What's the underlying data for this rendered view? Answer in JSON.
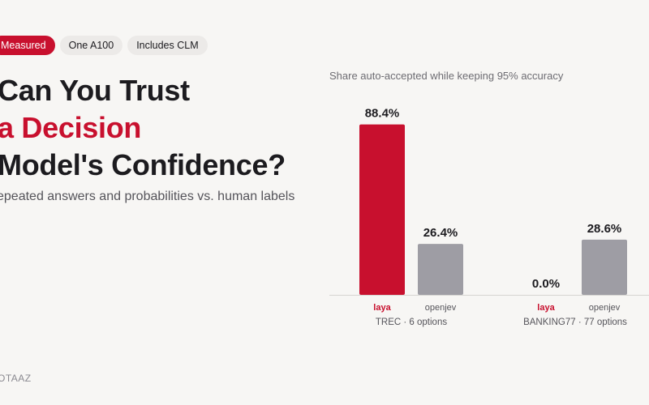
{
  "badges": [
    "Measured",
    "One A100",
    "Includes CLM"
  ],
  "headline": {
    "line1": "Can You Trust",
    "line2": "a Decision",
    "line3": "Model's Confidence?"
  },
  "subtitle": "epeated answers and probabilities vs. human labels",
  "brand": "OTAAZ",
  "colors": {
    "accent": "#c8102e",
    "neutral": "#9e9da4",
    "background": "#f7f6f4"
  },
  "chart_data": {
    "type": "bar",
    "title": "Share auto-accepted while keeping 95% accuracy",
    "ylim": [
      0,
      100
    ],
    "unit": "%",
    "groups": [
      {
        "label": "TREC · 6 options",
        "bars": [
          {
            "label": "laya",
            "value": 88.4,
            "value_label": "88.4%",
            "highlight": true
          },
          {
            "label": "openjev",
            "value": 26.4,
            "value_label": "26.4%",
            "highlight": false
          }
        ]
      },
      {
        "label": "BANKING77 · 77 options",
        "bars": [
          {
            "label": "laya",
            "value": 0.0,
            "value_label": "0.0%",
            "highlight": true
          },
          {
            "label": "openjev",
            "value": 28.6,
            "value_label": "28.6%",
            "highlight": false
          }
        ]
      }
    ]
  }
}
